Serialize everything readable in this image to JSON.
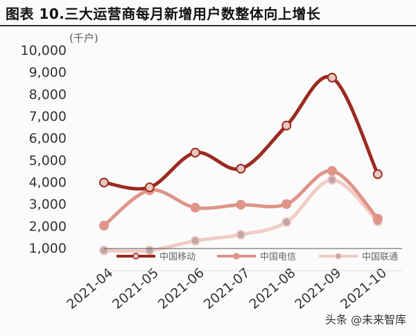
{
  "chart_data": {
    "type": "line",
    "title": "图表 10.三大运营商每月新增用户数整体向上增长",
    "unit": "(千户)",
    "categories": [
      "2021-04",
      "2021-05",
      "2021-06",
      "2021-07",
      "2021-08",
      "2021-09",
      "2021-10"
    ],
    "ylim": [
      1000,
      10000
    ],
    "yticks": [
      "1,000",
      "2,000",
      "3,000",
      "4,000",
      "5,000",
      "6,000",
      "7,000",
      "8,000",
      "9,000",
      "10,000"
    ],
    "grid": false,
    "legend": "bottom",
    "series": [
      {
        "name": "中国移动",
        "color": "#9b2a20",
        "marker": "#e8c8c0",
        "values": [
          3970,
          3750,
          5330,
          4600,
          6560,
          8740,
          4350
        ]
      },
      {
        "name": "中国电信",
        "color": "#df9488",
        "marker": "#df9488",
        "values": [
          2010,
          3620,
          2830,
          2960,
          2990,
          4500,
          2330
        ]
      },
      {
        "name": "中国联通",
        "color": "#f2cbc5",
        "marker": "#bfa7a5",
        "values": [
          880,
          880,
          1320,
          1600,
          2170,
          4090,
          2200
        ]
      }
    ]
  },
  "watermark": "头条 @未来智库"
}
